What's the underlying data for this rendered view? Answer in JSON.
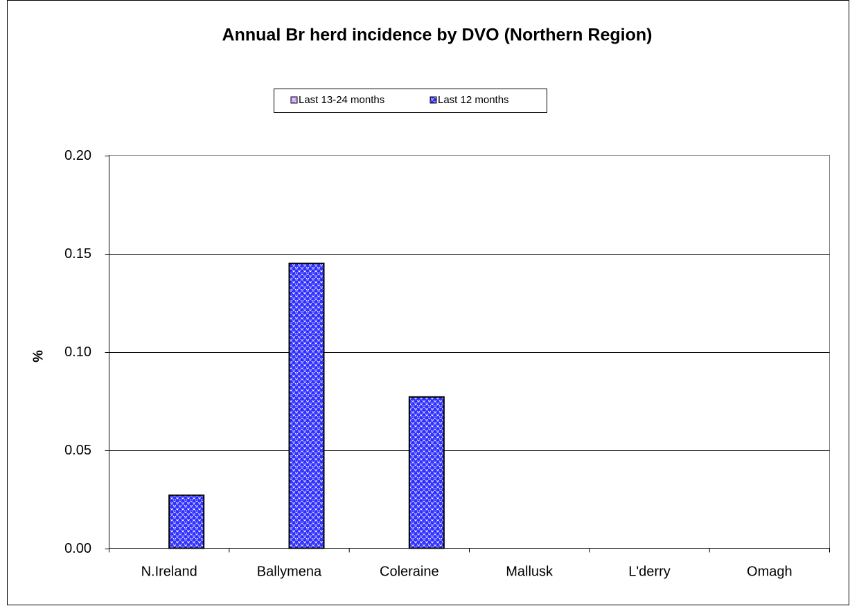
{
  "chart_data": {
    "type": "bar",
    "title": "Annual Br herd incidence by DVO (Northern Region)",
    "y_label": "%",
    "categories": [
      "N.Ireland",
      "Ballymena",
      "Coleraine",
      "Mallusk",
      "L'derry",
      "Omagh"
    ],
    "series": [
      {
        "name": "Last 13-24 months",
        "color": "#cc99ff",
        "values": [
          0,
          0,
          0,
          0,
          0,
          0
        ]
      },
      {
        "name": "Last 12 months",
        "color": "#2f2fff",
        "values": [
          0.027,
          0.145,
          0.077,
          0,
          0,
          0
        ]
      }
    ],
    "ylim": [
      0,
      0.2
    ],
    "yticks": [
      {
        "value": 0,
        "label": "0.00"
      },
      {
        "value": 0.05,
        "label": "0.05"
      },
      {
        "value": 0.1,
        "label": "0.10"
      },
      {
        "value": 0.15,
        "label": "0.15"
      },
      {
        "value": 0.2,
        "label": "0.20"
      }
    ],
    "grid": true,
    "legend": "top"
  }
}
